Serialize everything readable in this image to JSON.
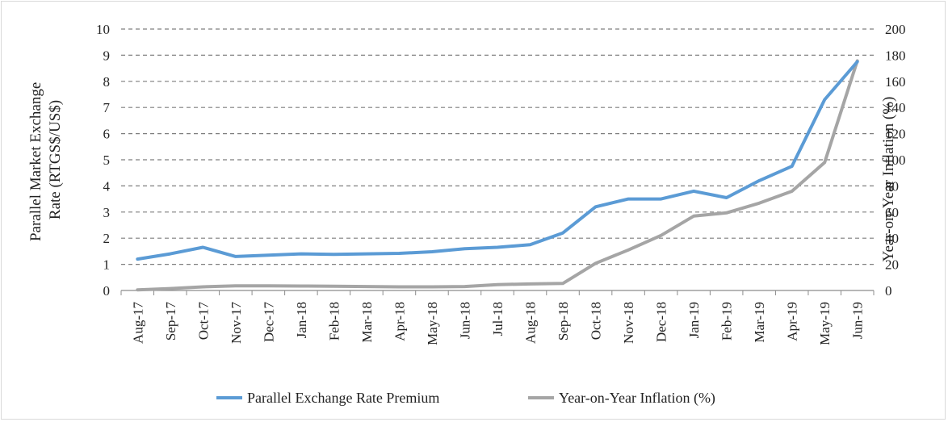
{
  "chart_data": {
    "type": "line",
    "categories": [
      "Aug-17",
      "Sep-17",
      "Oct-17",
      "Nov-17",
      "Dec-17",
      "Jan-18",
      "Feb-18",
      "Mar-18",
      "Apr-18",
      "May-18",
      "Jun-18",
      "Jul-18",
      "Aug-18",
      "Sep-18",
      "Oct-18",
      "Nov-18",
      "Dec-18",
      "Jan-19",
      "Feb-19",
      "Mar-19",
      "Apr-19",
      "May-19",
      "Jun-19"
    ],
    "y_left": {
      "label_lines": [
        "Parallel Market Exchange",
        "Rate (RTGS$/US$)"
      ],
      "ylim": [
        0,
        10
      ],
      "ticks": [
        "0",
        "1",
        "2",
        "3",
        "4",
        "5",
        "6",
        "7",
        "8",
        "9",
        "10"
      ]
    },
    "y_right": {
      "label": "Year-on-Year Inflation (%)",
      "ylim": [
        0,
        200
      ],
      "ticks": [
        "0",
        "20",
        "40",
        "60",
        "80",
        "100",
        "120",
        "140",
        "160",
        "180",
        "200"
      ]
    },
    "grid": true,
    "legend_position": "bottom",
    "series": [
      {
        "name": "Parallel Exchange Rate Premium",
        "axis": "left",
        "color": "#5b9bd5",
        "values": [
          1.2,
          1.4,
          1.65,
          1.3,
          1.35,
          1.4,
          1.38,
          1.4,
          1.42,
          1.48,
          1.6,
          1.65,
          1.75,
          2.2,
          3.2,
          3.5,
          3.5,
          3.8,
          3.55,
          4.2,
          4.75,
          7.3,
          8.75
        ]
      },
      {
        "name": "Year-on-Year Inflation (%)",
        "axis": "right",
        "color": "#a5a5a5",
        "values": [
          0.5,
          1.5,
          2.8,
          3.5,
          3.5,
          3.4,
          3.3,
          3.0,
          2.8,
          2.8,
          3.0,
          4.5,
          5.0,
          5.4,
          20.8,
          31.0,
          42.1,
          56.9,
          59.4,
          66.8,
          75.9,
          97.9,
          175.7
        ]
      }
    ]
  }
}
